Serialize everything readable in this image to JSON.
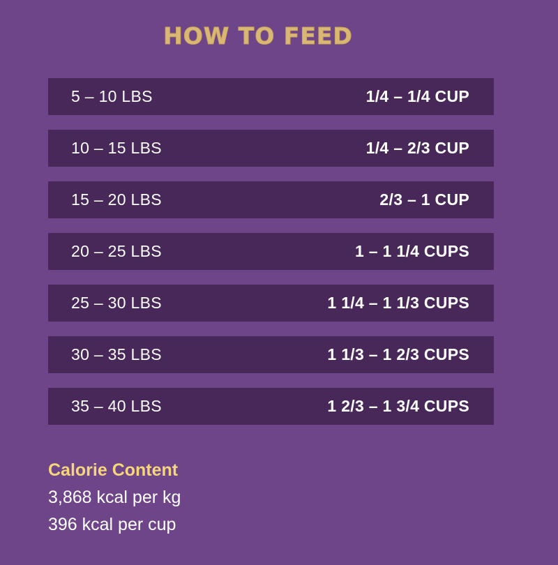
{
  "title": "HOW TO FEED",
  "rows": [
    {
      "weight": "5 – 10 LBS",
      "amount": "1/4 – 1/4 CUP"
    },
    {
      "weight": "10 – 15 LBS",
      "amount": "1/4 – 2/3 CUP"
    },
    {
      "weight": "15 – 20 LBS",
      "amount": "2/3 – 1 CUP"
    },
    {
      "weight": "20 – 25 LBS",
      "amount": "1 – 1 1/4 CUPS"
    },
    {
      "weight": "25 – 30 LBS",
      "amount": "1 1/4 – 1 1/3 CUPS"
    },
    {
      "weight": "30 – 35 LBS",
      "amount": "1 1/3 – 1 2/3 CUPS"
    },
    {
      "weight": "35 – 40 LBS",
      "amount": "1 2/3 – 1 3/4 CUPS"
    }
  ],
  "calorie": {
    "heading": "Calorie Content",
    "per_kg": "3,868 kcal per kg",
    "per_cup": "396 kcal per cup"
  },
  "colors": {
    "background": "#6e4589",
    "row_background": "#482859",
    "title": "#d9b876",
    "heading_accent": "#f5d67a"
  }
}
